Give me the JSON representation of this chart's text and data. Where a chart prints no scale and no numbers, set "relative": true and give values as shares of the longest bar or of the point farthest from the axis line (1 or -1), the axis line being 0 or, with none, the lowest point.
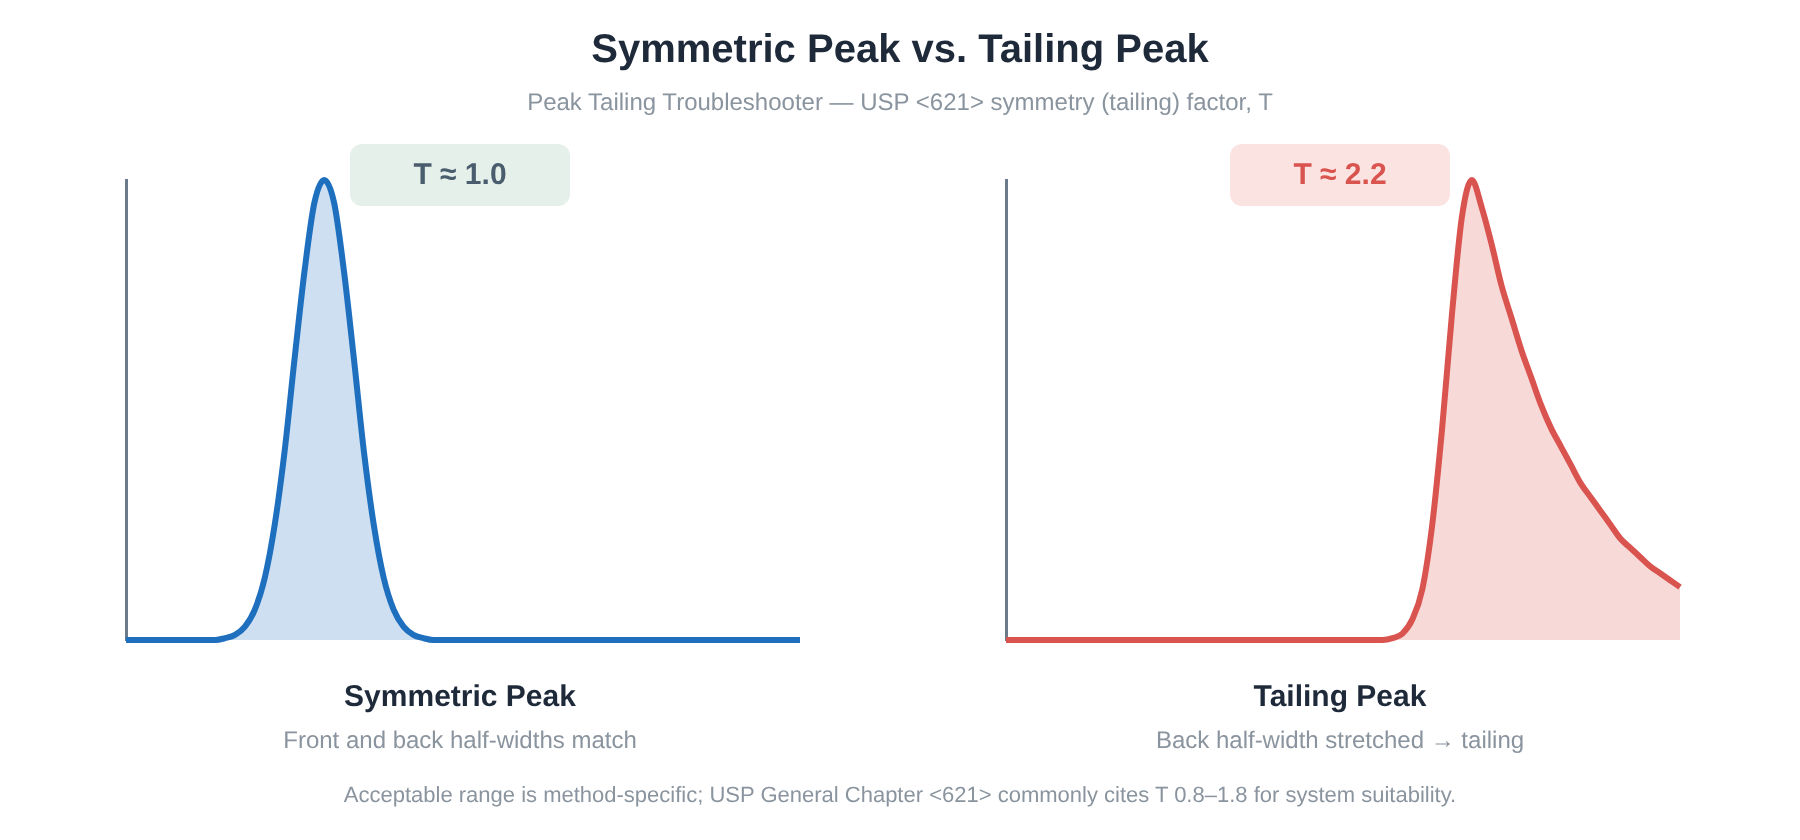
{
  "chart_data": [
    {
      "type": "area",
      "relative": true,
      "title": "Symmetric Peak vs. Tailing Peak",
      "subtitle": "Peak Tailing Troubleshooter — USP <621> symmetry (tailing) factor, T",
      "xlabel": "Symmetric Peak",
      "color": "#1f6fbf",
      "categories": [
        null,
        null,
        null,
        null,
        null,
        null,
        null,
        null,
        null,
        null,
        null,
        null,
        null,
        null,
        null,
        null,
        null,
        null,
        null,
        null,
        null,
        null,
        null,
        null,
        null,
        null,
        null,
        null,
        null,
        null,
        null,
        null,
        null,
        null,
        null,
        null,
        null,
        null,
        null,
        null,
        null,
        null,
        null,
        null,
        null,
        null,
        null,
        null,
        null,
        null,
        null,
        null,
        null,
        null,
        null,
        null,
        null,
        null,
        null,
        null,
        null,
        null,
        null,
        null,
        null,
        null,
        null,
        null,
        null
      ],
      "values": [
        0,
        0,
        0,
        0,
        0,
        0,
        0,
        0,
        0,
        0,
        0.004,
        0.011,
        0.029,
        0.066,
        0.135,
        0.25,
        0.41,
        0.61,
        0.8,
        0.95,
        1,
        0.95,
        0.8,
        0.61,
        0.41,
        0.25,
        0.135,
        0.066,
        0.029,
        0.011,
        0.004,
        0,
        0,
        0,
        0,
        0,
        0,
        0,
        0,
        0,
        0,
        0,
        0,
        0,
        0,
        0,
        0,
        0,
        0,
        0,
        0,
        0,
        0,
        0,
        0,
        0,
        0,
        0,
        0,
        0,
        0,
        0,
        0,
        0,
        0,
        0,
        0,
        0,
        0
      ],
      "annotations": [
        "T ≈ 1.0",
        "Front and back half-widths match"
      ]
    },
    {
      "type": "area",
      "relative": true,
      "xlabel": "Tailing Peak",
      "color": "#d9534f",
      "categories": [
        null,
        null,
        null,
        null,
        null,
        null,
        null,
        null,
        null,
        null,
        null,
        null,
        null,
        null,
        null,
        null,
        null,
        null,
        null,
        null,
        null,
        null,
        null,
        null,
        null,
        null,
        null,
        null,
        null,
        null,
        null,
        null,
        null,
        null,
        null,
        null,
        null,
        null,
        null,
        null,
        null,
        null,
        null,
        null,
        null,
        null,
        null,
        null,
        null,
        null,
        null,
        null,
        null,
        null,
        null,
        null,
        null,
        null,
        null,
        null,
        null,
        null,
        null,
        null,
        null,
        null,
        null,
        null,
        null
      ],
      "values": [
        0,
        0,
        0,
        0,
        0,
        0,
        0,
        0,
        0,
        0,
        0,
        0,
        0,
        0,
        0,
        0,
        0,
        0,
        0,
        0,
        0,
        0,
        0,
        0,
        0,
        0,
        0,
        0,
        0,
        0,
        0,
        0,
        0,
        0,
        0,
        0,
        0,
        0,
        0,
        0.004,
        0.014,
        0.045,
        0.11,
        0.25,
        0.46,
        0.71,
        0.92,
        1,
        0.94,
        0.86,
        0.77,
        0.7,
        0.63,
        0.57,
        0.51,
        0.46,
        0.42,
        0.38,
        0.34,
        0.31,
        0.28,
        0.25,
        0.22,
        0.2,
        0.18,
        0.16,
        0.145,
        0.13,
        0.115
      ],
      "annotations": [
        "T ≈ 2.2",
        "Back half-width stretched → tailing",
        "Acceptable range is method-specific; USP General Chapter <621> commonly cites T 0.8–1.8 for system suitability."
      ]
    }
  ]
}
